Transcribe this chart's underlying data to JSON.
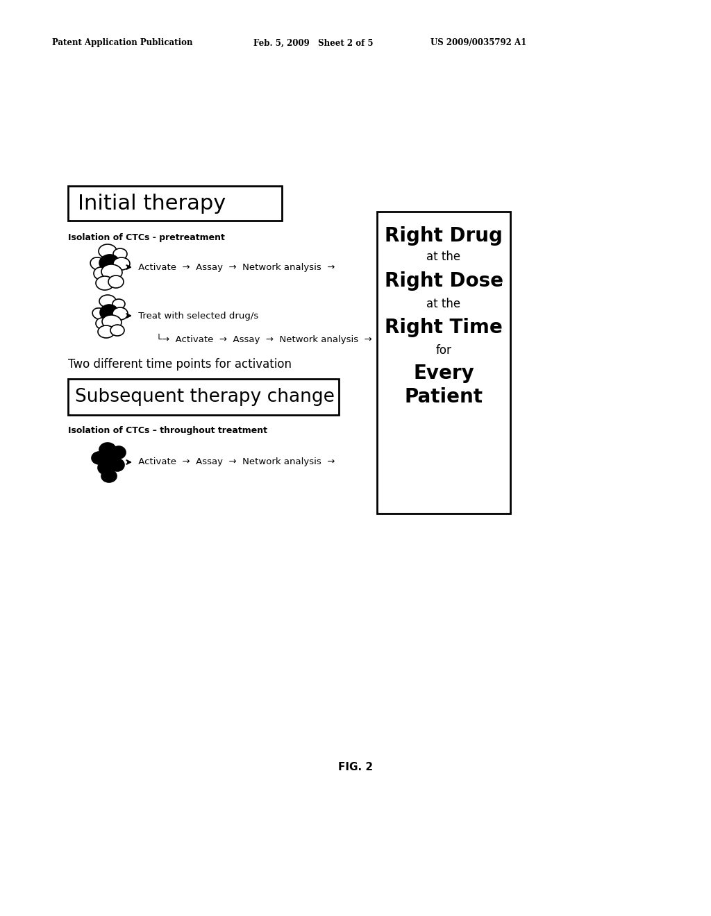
{
  "bg_color": "#ffffff",
  "header_left": "Patent Application Publication",
  "header_mid": "Feb. 5, 2009   Sheet 2 of 5",
  "header_right": "US 2009/0035792 A1",
  "fig_label": "FIG. 2",
  "initial_therapy_label": "Initial therapy",
  "isolation_pre": "Isolation of CTCs - pretreatment",
  "row1_text": "→  Activate  →  Assay  →  Network analysis  →",
  "treat_text": "→  Treat with selected drug/s",
  "row2_indent": "└→  Activate  →  Assay  →  Network analysis  →",
  "two_different": "Two different time points for activation",
  "subsequent_label": "Subsequent therapy change",
  "isolation_throughout": "Isolation of CTCs – throughout treatment",
  "row3_text": "→  Activate  →  Assay  →  Network analysis  →",
  "right_box_lines": [
    "Right Drug",
    "at the",
    "Right Dose",
    "at the",
    "Right Time",
    "for",
    "Every",
    "Patient"
  ],
  "right_box_bold": [
    true,
    false,
    true,
    false,
    true,
    false,
    true,
    true
  ],
  "right_box_sizes": [
    20,
    12,
    20,
    12,
    20,
    12,
    20,
    20
  ]
}
